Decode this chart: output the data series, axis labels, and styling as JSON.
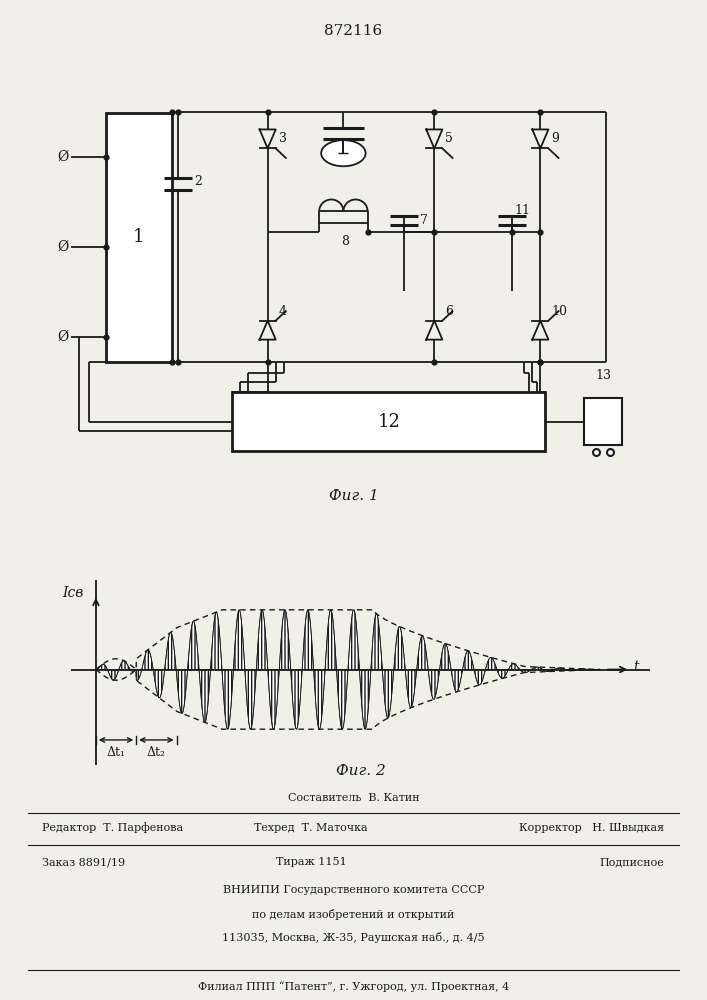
{
  "patent_number": "872116",
  "fig1_caption": "Фиг. 1",
  "fig2_caption": "Фиг. 2",
  "fig2_ylabel": "Iсв",
  "fig2_xlabel": "t",
  "fig2_dt1": "Δt₁",
  "fig2_dt2": "Δt₂",
  "footer_line1": "Составитель  В. Катин",
  "footer_line2_left": "Редактор  Т. Парфенова",
  "footer_line2_mid": "Техред  Т. Маточка",
  "footer_line2_right": "Корректор   Н. Швыдкая",
  "footer_line3_left": "Заказ 8891/19",
  "footer_line3_mid": "Тираж 1151",
  "footer_line3_right": "Подписное",
  "footer_line4": "ВНИИПИ Государственного комитета СССР",
  "footer_line5": "по делам изобретений и открытий",
  "footer_line6": "113035, Москва, Ж-35, Раушская наб., д. 4/5",
  "footer_line7": "Филиал ППП “Патент”, г. Ужгород, ул. Проектная, 4",
  "bg_color": "#f0efe8",
  "line_color": "#1a1a1a"
}
